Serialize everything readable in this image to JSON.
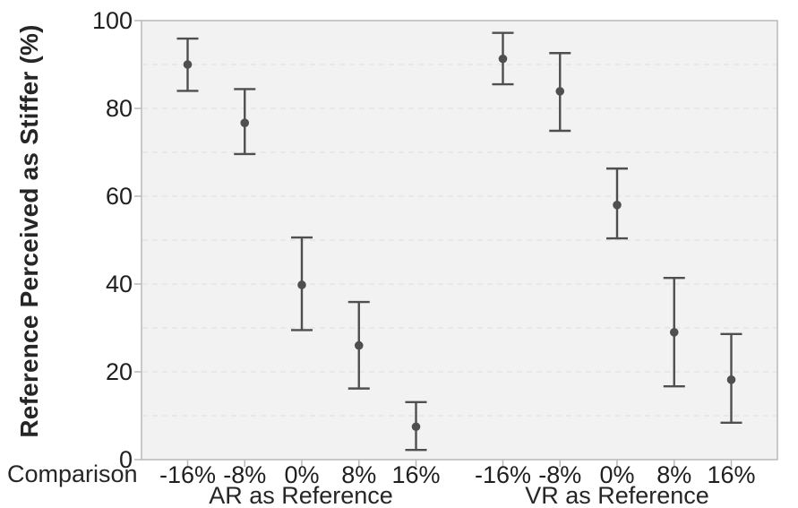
{
  "figure": {
    "y_axis_title": "Reference Perceived as Stiffer (%)",
    "comparison_label": "Comparison",
    "colors": {
      "plot_background": "#f2f2f2",
      "frame": "#b9b9b9",
      "grid": "#e1e1e1",
      "point": "#4f4f4f",
      "text": "#1f1f1f"
    }
  },
  "chart_data": {
    "type": "scatter",
    "subtype": "point-with-error-bars",
    "title": "",
    "xlabel": "Comparison",
    "ylabel": "Reference Perceived as Stiffer (%)",
    "ylim": [
      0,
      100
    ],
    "yticks": [
      0,
      20,
      40,
      60,
      80,
      100
    ],
    "grid": "dashed horizontal gridlines every 10 units",
    "legend": "none",
    "categories": [
      "-16%",
      "-8%",
      "0%",
      "8%",
      "16%"
    ],
    "groups": [
      {
        "label": "AR as Reference",
        "means": [
          90.0,
          76.7,
          39.8,
          26.0,
          7.5
        ],
        "ci_low": [
          84.0,
          69.6,
          29.5,
          16.2,
          2.2
        ],
        "ci_high": [
          95.9,
          84.4,
          50.6,
          35.9,
          13.1
        ]
      },
      {
        "label": "VR as Reference",
        "means": [
          91.3,
          83.9,
          58.0,
          29.0,
          18.2
        ],
        "ci_low": [
          85.5,
          74.9,
          50.4,
          16.7,
          8.4
        ],
        "ci_high": [
          97.2,
          92.6,
          66.3,
          41.4,
          28.6
        ]
      }
    ]
  }
}
